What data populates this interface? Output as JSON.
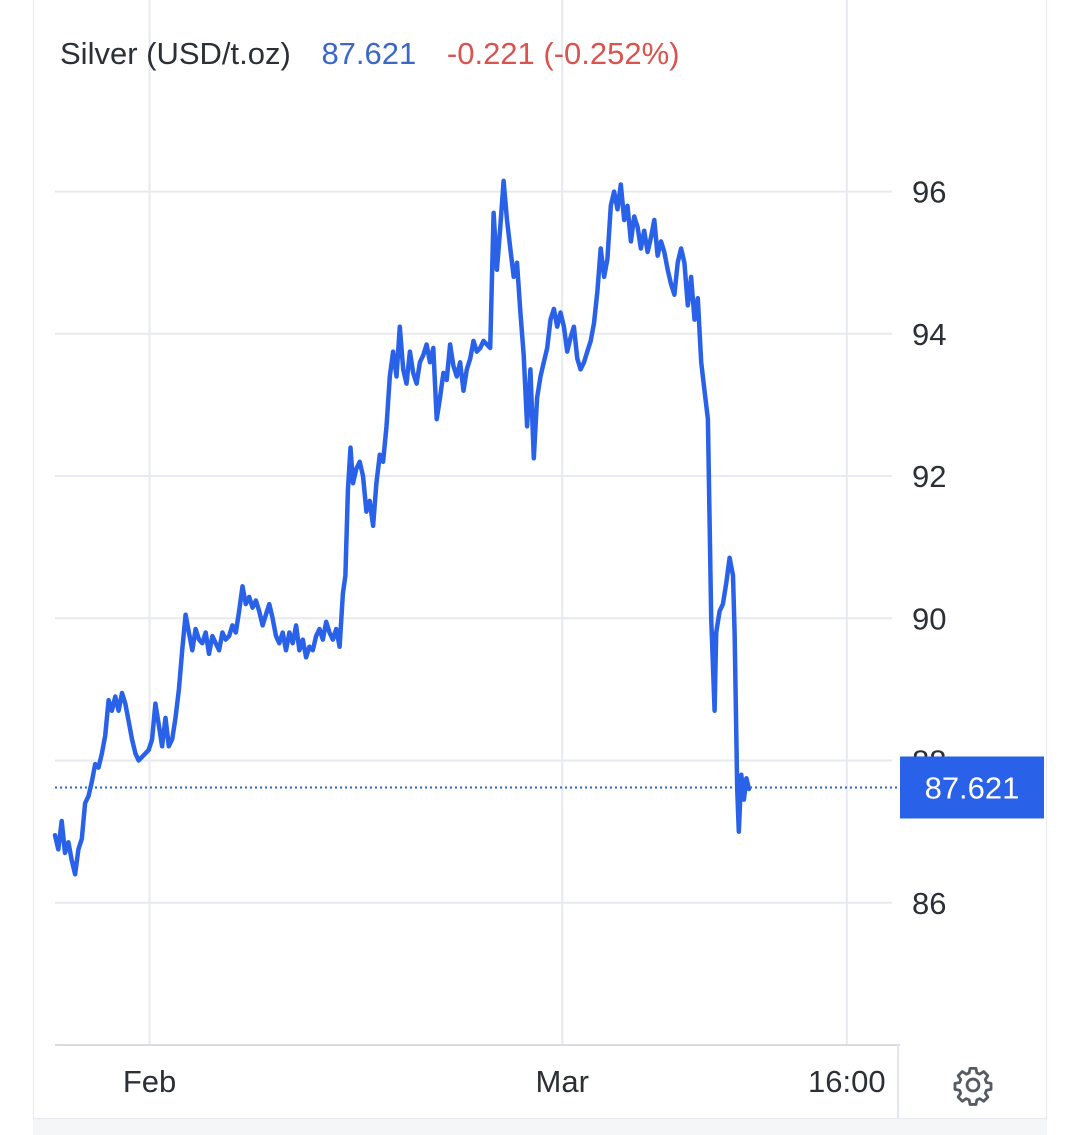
{
  "header": {
    "instrument": "Silver (USD/t.oz)",
    "price": "87.621",
    "change": "-0.221 (-0.252%)"
  },
  "colors": {
    "line": "#2962e8",
    "price_tag": "#2962e8",
    "change_negative": "#d9534f",
    "price_text": "#3b67c9",
    "grid": "#e7eaee"
  },
  "icons": {
    "settings": "gear-icon"
  },
  "chart_data": {
    "type": "line",
    "title": "Silver (USD/t.oz)",
    "ylim": [
      84.0,
      97.4
    ],
    "y_ticks": [
      86,
      88,
      90,
      92,
      94,
      96
    ],
    "y_tick_labels": [
      "86",
      "88",
      "90",
      "92",
      "94",
      "96"
    ],
    "x_range": [
      0,
      1000
    ],
    "x_ticks": [
      {
        "x": 113,
        "label": "Feb"
      },
      {
        "x": 606,
        "label": "Mar"
      },
      {
        "x": 946,
        "label": "16:00"
      }
    ],
    "last_value": "87.621",
    "grid": true,
    "series": [
      {
        "values": [
          [
            0,
            86.95
          ],
          [
            4,
            86.75
          ],
          [
            8,
            87.15
          ],
          [
            12,
            86.7
          ],
          [
            16,
            86.85
          ],
          [
            20,
            86.6
          ],
          [
            24,
            86.4
          ],
          [
            28,
            86.75
          ],
          [
            32,
            86.9
          ],
          [
            36,
            87.4
          ],
          [
            40,
            87.5
          ],
          [
            44,
            87.7
          ],
          [
            48,
            87.95
          ],
          [
            52,
            87.9
          ],
          [
            56,
            88.1
          ],
          [
            60,
            88.35
          ],
          [
            64,
            88.85
          ],
          [
            68,
            88.7
          ],
          [
            72,
            88.9
          ],
          [
            76,
            88.7
          ],
          [
            80,
            88.95
          ],
          [
            84,
            88.8
          ],
          [
            88,
            88.55
          ],
          [
            92,
            88.3
          ],
          [
            96,
            88.1
          ],
          [
            100,
            88.0
          ],
          [
            104,
            88.05
          ],
          [
            108,
            88.1
          ],
          [
            112,
            88.15
          ],
          [
            116,
            88.3
          ],
          [
            120,
            88.8
          ],
          [
            124,
            88.5
          ],
          [
            128,
            88.2
          ],
          [
            132,
            88.6
          ],
          [
            136,
            88.2
          ],
          [
            140,
            88.3
          ],
          [
            144,
            88.6
          ],
          [
            148,
            89.0
          ],
          [
            152,
            89.55
          ],
          [
            156,
            90.05
          ],
          [
            160,
            89.8
          ],
          [
            164,
            89.55
          ],
          [
            168,
            89.85
          ],
          [
            172,
            89.7
          ],
          [
            176,
            89.65
          ],
          [
            180,
            89.8
          ],
          [
            184,
            89.5
          ],
          [
            188,
            89.75
          ],
          [
            192,
            89.65
          ],
          [
            196,
            89.55
          ],
          [
            200,
            89.8
          ],
          [
            204,
            89.7
          ],
          [
            208,
            89.75
          ],
          [
            212,
            89.9
          ],
          [
            216,
            89.8
          ],
          [
            220,
            90.1
          ],
          [
            224,
            90.45
          ],
          [
            228,
            90.2
          ],
          [
            232,
            90.3
          ],
          [
            236,
            90.15
          ],
          [
            240,
            90.25
          ],
          [
            244,
            90.1
          ],
          [
            248,
            89.9
          ],
          [
            252,
            90.05
          ],
          [
            256,
            90.2
          ],
          [
            260,
            90.0
          ],
          [
            264,
            89.75
          ],
          [
            268,
            89.65
          ],
          [
            272,
            89.8
          ],
          [
            276,
            89.55
          ],
          [
            280,
            89.8
          ],
          [
            284,
            89.65
          ],
          [
            288,
            89.9
          ],
          [
            292,
            89.55
          ],
          [
            296,
            89.7
          ],
          [
            300,
            89.45
          ],
          [
            304,
            89.6
          ],
          [
            308,
            89.55
          ],
          [
            312,
            89.75
          ],
          [
            316,
            89.85
          ],
          [
            320,
            89.7
          ],
          [
            324,
            89.95
          ],
          [
            328,
            89.8
          ],
          [
            332,
            89.7
          ],
          [
            336,
            89.85
          ],
          [
            340,
            89.6
          ],
          [
            344,
            90.35
          ],
          [
            347,
            90.6
          ],
          [
            350,
            91.8
          ],
          [
            353,
            92.4
          ],
          [
            356,
            91.9
          ],
          [
            360,
            92.1
          ],
          [
            364,
            92.2
          ],
          [
            368,
            92.0
          ],
          [
            372,
            91.5
          ],
          [
            376,
            91.65
          ],
          [
            380,
            91.3
          ],
          [
            384,
            91.9
          ],
          [
            388,
            92.3
          ],
          [
            392,
            92.2
          ],
          [
            396,
            92.7
          ],
          [
            400,
            93.4
          ],
          [
            404,
            93.75
          ],
          [
            408,
            93.4
          ],
          [
            412,
            94.1
          ],
          [
            416,
            93.5
          ],
          [
            420,
            93.3
          ],
          [
            424,
            93.75
          ],
          [
            428,
            93.45
          ],
          [
            432,
            93.3
          ],
          [
            436,
            93.6
          ],
          [
            440,
            93.7
          ],
          [
            444,
            93.85
          ],
          [
            448,
            93.6
          ],
          [
            452,
            93.8
          ],
          [
            456,
            92.8
          ],
          [
            460,
            93.1
          ],
          [
            464,
            93.45
          ],
          [
            468,
            93.35
          ],
          [
            472,
            93.85
          ],
          [
            476,
            93.55
          ],
          [
            480,
            93.4
          ],
          [
            484,
            93.6
          ],
          [
            488,
            93.2
          ],
          [
            492,
            93.5
          ],
          [
            496,
            93.65
          ],
          [
            500,
            93.9
          ],
          [
            504,
            93.75
          ],
          [
            508,
            93.8
          ],
          [
            512,
            93.9
          ],
          [
            516,
            93.85
          ],
          [
            520,
            93.8
          ],
          [
            524,
            95.7
          ],
          [
            528,
            94.9
          ],
          [
            532,
            95.5
          ],
          [
            536,
            96.15
          ],
          [
            540,
            95.6
          ],
          [
            544,
            95.2
          ],
          [
            548,
            94.8
          ],
          [
            552,
            95.0
          ],
          [
            556,
            94.3
          ],
          [
            560,
            93.7
          ],
          [
            564,
            92.7
          ],
          [
            568,
            93.5
          ],
          [
            572,
            92.25
          ],
          [
            576,
            93.1
          ],
          [
            580,
            93.4
          ],
          [
            584,
            93.6
          ],
          [
            588,
            93.8
          ],
          [
            592,
            94.2
          ],
          [
            596,
            94.35
          ],
          [
            600,
            94.1
          ],
          [
            604,
            94.3
          ],
          [
            608,
            94.1
          ],
          [
            612,
            93.75
          ],
          [
            616,
            93.95
          ],
          [
            620,
            94.1
          ],
          [
            624,
            93.65
          ],
          [
            628,
            93.5
          ],
          [
            632,
            93.6
          ],
          [
            636,
            93.75
          ],
          [
            640,
            93.9
          ],
          [
            644,
            94.15
          ],
          [
            648,
            94.6
          ],
          [
            652,
            95.2
          ],
          [
            656,
            94.8
          ],
          [
            660,
            95.05
          ],
          [
            664,
            95.8
          ],
          [
            668,
            96.0
          ],
          [
            672,
            95.75
          ],
          [
            676,
            96.1
          ],
          [
            680,
            95.6
          ],
          [
            684,
            95.8
          ],
          [
            688,
            95.3
          ],
          [
            692,
            95.65
          ],
          [
            696,
            95.5
          ],
          [
            700,
            95.2
          ],
          [
            704,
            95.45
          ],
          [
            708,
            95.15
          ],
          [
            712,
            95.35
          ],
          [
            716,
            95.6
          ],
          [
            720,
            95.1
          ],
          [
            724,
            95.3
          ],
          [
            728,
            95.15
          ],
          [
            732,
            94.9
          ],
          [
            736,
            94.7
          ],
          [
            740,
            94.55
          ],
          [
            744,
            95.0
          ],
          [
            748,
            95.2
          ],
          [
            752,
            95.0
          ],
          [
            756,
            94.4
          ],
          [
            760,
            94.8
          ],
          [
            764,
            94.2
          ],
          [
            768,
            94.5
          ],
          [
            772,
            93.6
          ],
          [
            776,
            93.2
          ],
          [
            780,
            92.8
          ],
          [
            784,
            90.0
          ],
          [
            788,
            88.7
          ],
          [
            790,
            89.8
          ],
          [
            794,
            90.1
          ],
          [
            798,
            90.2
          ],
          [
            802,
            90.5
          ],
          [
            806,
            90.85
          ],
          [
            810,
            90.6
          ],
          [
            812,
            89.8
          ],
          [
            815,
            87.6
          ],
          [
            817,
            87.0
          ],
          [
            820,
            87.8
          ],
          [
            823,
            87.45
          ],
          [
            826,
            87.75
          ],
          [
            829,
            87.6
          ]
        ]
      }
    ]
  }
}
